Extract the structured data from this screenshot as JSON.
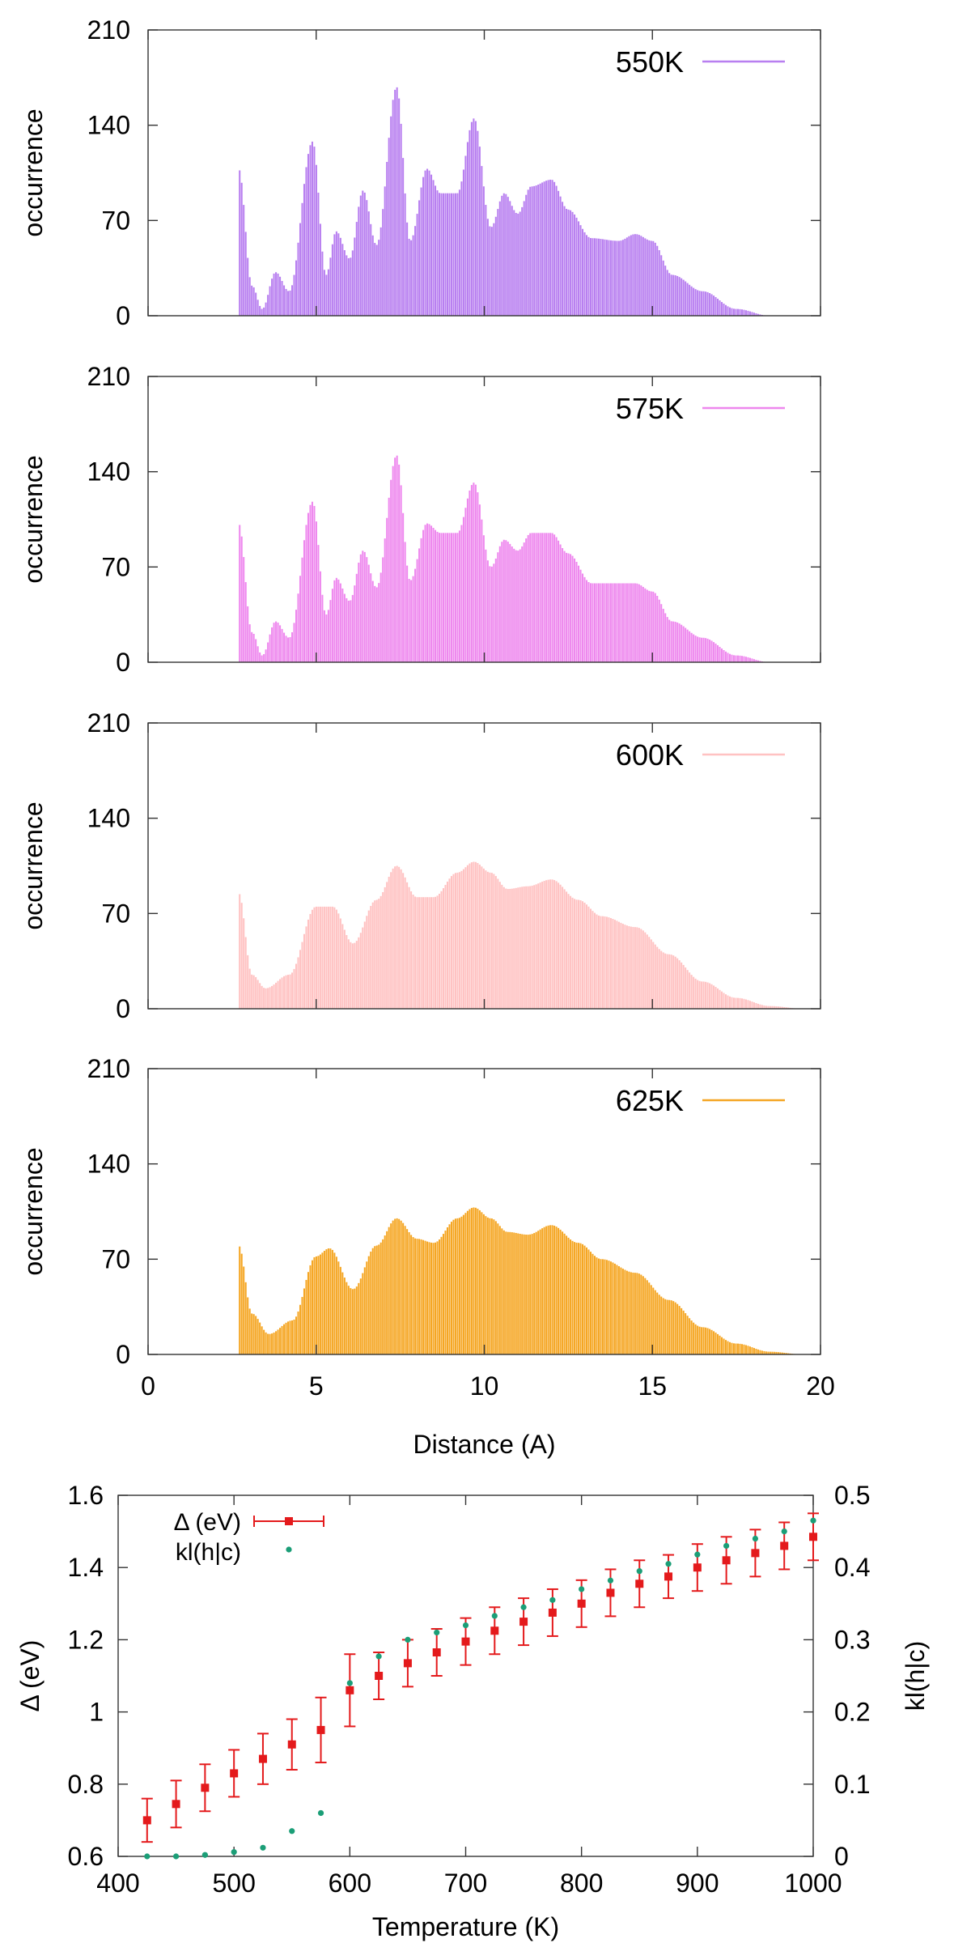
{
  "chart_data": [
    {
      "type": "bar",
      "ylabel": "occurrence",
      "xlabel": "",
      "ylim": [
        0,
        210
      ],
      "yticks": [
        0,
        70,
        140,
        210
      ],
      "xlim": [
        0,
        20
      ],
      "legend": {
        "label": "550K",
        "color": "#b87ff0",
        "position": "top-right"
      },
      "peaks": [
        [
          2.7,
          108
        ],
        [
          3.1,
          22
        ],
        [
          3.4,
          5
        ],
        [
          3.8,
          32
        ],
        [
          4.2,
          18
        ],
        [
          4.9,
          128
        ],
        [
          5.3,
          30
        ],
        [
          5.6,
          62
        ],
        [
          6.0,
          42
        ],
        [
          6.4,
          92
        ],
        [
          6.8,
          52
        ],
        [
          7.4,
          168
        ],
        [
          7.8,
          55
        ],
        [
          8.3,
          108
        ],
        [
          8.7,
          90
        ],
        [
          9.2,
          90
        ],
        [
          9.7,
          145
        ],
        [
          10.2,
          65
        ],
        [
          10.6,
          90
        ],
        [
          11.0,
          75
        ],
        [
          11.4,
          95
        ],
        [
          12.0,
          100
        ],
        [
          12.5,
          78
        ],
        [
          13.2,
          57
        ],
        [
          14.0,
          55
        ],
        [
          14.5,
          60
        ],
        [
          15.0,
          55
        ],
        [
          15.6,
          30
        ],
        [
          16.5,
          18
        ],
        [
          17.5,
          5
        ],
        [
          18.5,
          0
        ]
      ]
    },
    {
      "type": "bar",
      "ylabel": "occurrence",
      "xlabel": "",
      "ylim": [
        0,
        210
      ],
      "yticks": [
        0,
        70,
        140,
        210
      ],
      "xlim": [
        0,
        20
      ],
      "legend": {
        "label": "575K",
        "color": "#ee88ee",
        "position": "top-right"
      },
      "peaks": [
        [
          2.7,
          102
        ],
        [
          3.1,
          22
        ],
        [
          3.4,
          5
        ],
        [
          3.8,
          30
        ],
        [
          4.2,
          18
        ],
        [
          4.9,
          118
        ],
        [
          5.3,
          35
        ],
        [
          5.6,
          62
        ],
        [
          6.0,
          45
        ],
        [
          6.4,
          82
        ],
        [
          6.8,
          55
        ],
        [
          7.4,
          152
        ],
        [
          7.8,
          60
        ],
        [
          8.3,
          102
        ],
        [
          8.7,
          95
        ],
        [
          9.2,
          95
        ],
        [
          9.7,
          132
        ],
        [
          10.2,
          70
        ],
        [
          10.6,
          90
        ],
        [
          11.0,
          82
        ],
        [
          11.4,
          95
        ],
        [
          12.0,
          95
        ],
        [
          12.5,
          80
        ],
        [
          13.2,
          58
        ],
        [
          14.0,
          58
        ],
        [
          14.5,
          58
        ],
        [
          15.0,
          52
        ],
        [
          15.6,
          30
        ],
        [
          16.5,
          18
        ],
        [
          17.5,
          5
        ],
        [
          18.5,
          0
        ]
      ]
    },
    {
      "type": "bar",
      "ylabel": "occurrence",
      "xlabel": "",
      "ylim": [
        0,
        210
      ],
      "yticks": [
        0,
        70,
        140,
        210
      ],
      "xlim": [
        0,
        20
      ],
      "legend": {
        "label": "600K",
        "color": "#ffc2c2",
        "position": "top-right"
      },
      "peaks": [
        [
          2.7,
          85
        ],
        [
          3.1,
          25
        ],
        [
          3.5,
          15
        ],
        [
          4.2,
          25
        ],
        [
          5.0,
          75
        ],
        [
          5.5,
          75
        ],
        [
          6.1,
          48
        ],
        [
          6.8,
          80
        ],
        [
          7.4,
          105
        ],
        [
          8.0,
          82
        ],
        [
          8.5,
          82
        ],
        [
          9.2,
          100
        ],
        [
          9.7,
          108
        ],
        [
          10.2,
          100
        ],
        [
          10.7,
          88
        ],
        [
          11.3,
          90
        ],
        [
          12.0,
          95
        ],
        [
          12.8,
          80
        ],
        [
          13.5,
          68
        ],
        [
          14.5,
          60
        ],
        [
          15.5,
          40
        ],
        [
          16.5,
          20
        ],
        [
          17.5,
          8
        ],
        [
          18.5,
          2
        ],
        [
          19.5,
          0
        ]
      ]
    },
    {
      "type": "bar",
      "ylabel": "occurrence",
      "xlabel": "Distance (A)",
      "ylim": [
        0,
        210
      ],
      "yticks": [
        0,
        70,
        140,
        210
      ],
      "xlim": [
        0,
        20
      ],
      "xticks": [
        0,
        5,
        10,
        15,
        20
      ],
      "legend": {
        "label": "625K",
        "color": "#f5a623",
        "position": "top-right"
      },
      "peaks": [
        [
          2.7,
          80
        ],
        [
          3.1,
          30
        ],
        [
          3.6,
          15
        ],
        [
          4.3,
          25
        ],
        [
          5.0,
          72
        ],
        [
          5.4,
          78
        ],
        [
          6.1,
          48
        ],
        [
          6.8,
          80
        ],
        [
          7.4,
          100
        ],
        [
          8.0,
          85
        ],
        [
          8.5,
          82
        ],
        [
          9.2,
          100
        ],
        [
          9.7,
          108
        ],
        [
          10.2,
          100
        ],
        [
          10.7,
          90
        ],
        [
          11.3,
          88
        ],
        [
          12.0,
          95
        ],
        [
          12.8,
          82
        ],
        [
          13.5,
          70
        ],
        [
          14.5,
          60
        ],
        [
          15.5,
          40
        ],
        [
          16.5,
          20
        ],
        [
          17.5,
          8
        ],
        [
          18.5,
          2
        ],
        [
          19.5,
          0
        ]
      ]
    },
    {
      "type": "scatter",
      "xlabel": "Temperature (K)",
      "ylabel": "Δ (eV)",
      "y2label": "kl(h|c)",
      "xlim": [
        400,
        1000
      ],
      "xticks": [
        400,
        500,
        600,
        700,
        800,
        900,
        1000
      ],
      "ylim": [
        0.6,
        1.6
      ],
      "yticks": [
        0.6,
        0.8,
        1,
        1.2,
        1.4,
        1.6
      ],
      "ytick_labels": [
        "0.6",
        "0.8",
        "1",
        "1.2",
        "1.4",
        "1.6"
      ],
      "y2lim": [
        0,
        0.5
      ],
      "y2ticks": [
        0,
        0.1,
        0.2,
        0.3,
        0.4,
        0.5
      ],
      "y2tick_labels": [
        "0",
        "0.1",
        "0.2",
        "0.3",
        "0.4",
        "0.5"
      ],
      "legend_position": "top-left",
      "series": [
        {
          "name": "Δ (eV)",
          "axis": "y",
          "color": "#e41a1c",
          "marker": "square",
          "x": [
            425,
            450,
            475,
            500,
            525,
            550,
            575,
            600,
            625,
            650,
            675,
            700,
            725,
            750,
            775,
            800,
            825,
            850,
            875,
            900,
            925,
            950,
            975,
            1000
          ],
          "y": [
            0.7,
            0.745,
            0.79,
            0.83,
            0.87,
            0.91,
            0.95,
            1.06,
            1.1,
            1.135,
            1.165,
            1.195,
            1.225,
            1.25,
            1.275,
            1.3,
            1.33,
            1.355,
            1.375,
            1.4,
            1.42,
            1.44,
            1.46,
            1.485
          ],
          "err": [
            0.06,
            0.065,
            0.065,
            0.065,
            0.07,
            0.07,
            0.09,
            0.1,
            0.065,
            0.065,
            0.065,
            0.065,
            0.065,
            0.065,
            0.065,
            0.065,
            0.065,
            0.065,
            0.06,
            0.065,
            0.065,
            0.065,
            0.065,
            0.065
          ]
        },
        {
          "name": "kl(h|c)",
          "axis": "y2",
          "color": "#1b9e77",
          "marker": "dot",
          "x": [
            425,
            450,
            475,
            500,
            525,
            550,
            575,
            600,
            625,
            650,
            675,
            700,
            725,
            750,
            775,
            800,
            825,
            850,
            875,
            900,
            925,
            950,
            975,
            1000
          ],
          "y": [
            0,
            0,
            0.002,
            0.006,
            0.012,
            0.035,
            0.06,
            0.24,
            0.277,
            0.3,
            0.31,
            0.32,
            0.333,
            0.345,
            0.355,
            0.37,
            0.382,
            0.395,
            0.405,
            0.418,
            0.43,
            0.44,
            0.45,
            0.465
          ]
        }
      ]
    }
  ]
}
